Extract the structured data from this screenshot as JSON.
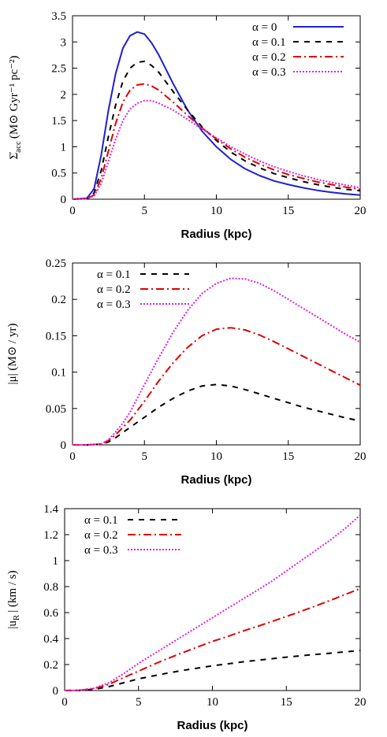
{
  "chart_data": [
    {
      "type": "line",
      "xlabel": "Radius (kpc)",
      "ylabel_main": "Σ̇",
      "ylabel_sub": "acc",
      "ylabel_units": "(M⊙ Gyr⁻¹ pc⁻²)",
      "xlim": [
        0,
        20
      ],
      "ylim": [
        0,
        3.5
      ],
      "xticks": [
        "0",
        "5",
        "10",
        "15",
        "20"
      ],
      "yticks": [
        "0",
        "0.5",
        "1",
        "1.5",
        "2",
        "2.5",
        "3",
        "3.5"
      ],
      "legend_position": "top-right",
      "series": [
        {
          "name": "α = 0",
          "color": "#1f1fd0",
          "dash": "solid",
          "x": [
            0,
            1,
            1.5,
            2,
            2.5,
            3,
            3.5,
            4,
            4.5,
            5,
            5.5,
            6,
            7,
            8,
            9,
            10,
            11,
            12,
            13,
            14,
            15,
            16,
            17,
            18,
            19,
            20
          ],
          "y": [
            0,
            0.02,
            0.2,
            0.85,
            1.7,
            2.4,
            2.88,
            3.12,
            3.19,
            3.15,
            2.98,
            2.75,
            2.2,
            1.7,
            1.3,
            1.0,
            0.76,
            0.58,
            0.45,
            0.35,
            0.28,
            0.22,
            0.17,
            0.13,
            0.1,
            0.08
          ]
        },
        {
          "name": "α = 0.1",
          "color": "#000000",
          "dash": "dashed",
          "x": [
            0,
            1,
            1.5,
            2,
            2.5,
            3,
            3.5,
            4,
            4.5,
            5,
            5.5,
            6,
            7,
            8,
            9,
            10,
            11,
            12,
            13,
            14,
            15,
            16,
            17,
            18,
            19,
            20
          ],
          "y": [
            0,
            0.01,
            0.12,
            0.55,
            1.2,
            1.8,
            2.25,
            2.5,
            2.61,
            2.63,
            2.55,
            2.42,
            2.05,
            1.7,
            1.38,
            1.12,
            0.9,
            0.73,
            0.6,
            0.49,
            0.41,
            0.34,
            0.28,
            0.23,
            0.19,
            0.16
          ]
        },
        {
          "name": "α = 0.2",
          "color": "#e00000",
          "dash": "dashdot",
          "x": [
            0,
            1,
            1.5,
            2,
            2.5,
            3,
            3.5,
            4,
            4.5,
            5,
            5.5,
            6,
            7,
            8,
            9,
            10,
            11,
            12,
            13,
            14,
            15,
            16,
            17,
            18,
            19,
            20
          ],
          "y": [
            0,
            0.01,
            0.08,
            0.4,
            0.92,
            1.45,
            1.85,
            2.08,
            2.18,
            2.2,
            2.16,
            2.08,
            1.85,
            1.6,
            1.36,
            1.15,
            0.96,
            0.8,
            0.67,
            0.56,
            0.47,
            0.4,
            0.33,
            0.28,
            0.23,
            0.19
          ]
        },
        {
          "name": "α = 0.3",
          "color": "#e020e0",
          "dash": "dotted",
          "x": [
            0,
            1,
            1.5,
            2,
            2.5,
            3,
            3.5,
            4,
            4.5,
            5,
            5.5,
            6,
            7,
            8,
            9,
            10,
            11,
            12,
            13,
            14,
            15,
            16,
            17,
            18,
            19,
            20
          ],
          "y": [
            0,
            0.01,
            0.06,
            0.3,
            0.72,
            1.15,
            1.5,
            1.72,
            1.83,
            1.88,
            1.88,
            1.83,
            1.7,
            1.52,
            1.34,
            1.17,
            1.0,
            0.86,
            0.73,
            0.62,
            0.53,
            0.45,
            0.38,
            0.32,
            0.27,
            0.22
          ]
        }
      ]
    },
    {
      "type": "line",
      "xlabel": "Radius (kpc)",
      "ylabel_main": "|μ| (M⊙ / yr)",
      "xlim": [
        0,
        20
      ],
      "ylim": [
        0,
        0.25
      ],
      "xticks": [
        "0",
        "5",
        "10",
        "15",
        "20"
      ],
      "yticks": [
        "0",
        "0.05",
        "0.1",
        "0.15",
        "0.2",
        "0.25"
      ],
      "legend_position": "top-left",
      "series": [
        {
          "name": "α = 0.1",
          "color": "#000000",
          "dash": "dashed",
          "x": [
            0,
            1,
            2,
            2.5,
            3,
            3.5,
            4,
            5,
            6,
            7,
            8,
            9,
            10,
            11,
            12,
            13,
            14,
            15,
            16,
            17,
            18,
            19,
            20
          ],
          "y": [
            0,
            0,
            0.001,
            0.004,
            0.01,
            0.017,
            0.024,
            0.038,
            0.052,
            0.064,
            0.074,
            0.081,
            0.083,
            0.081,
            0.076,
            0.07,
            0.064,
            0.058,
            0.052,
            0.047,
            0.042,
            0.037,
            0.033
          ]
        },
        {
          "name": "α = 0.2",
          "color": "#e00000",
          "dash": "dashdot",
          "x": [
            0,
            1,
            2,
            2.5,
            3,
            3.5,
            4,
            5,
            6,
            7,
            8,
            9,
            10,
            11,
            12,
            13,
            14,
            15,
            16,
            17,
            18,
            19,
            20
          ],
          "y": [
            0,
            0,
            0.001,
            0.006,
            0.014,
            0.024,
            0.034,
            0.06,
            0.088,
            0.113,
            0.134,
            0.15,
            0.159,
            0.161,
            0.158,
            0.151,
            0.142,
            0.132,
            0.122,
            0.112,
            0.102,
            0.092,
            0.082
          ]
        },
        {
          "name": "α = 0.3",
          "color": "#e020e0",
          "dash": "dotted",
          "x": [
            0,
            1,
            2,
            2.5,
            3,
            3.5,
            4,
            5,
            6,
            7,
            8,
            9,
            10,
            11,
            12,
            13,
            14,
            15,
            16,
            17,
            18,
            19,
            20
          ],
          "y": [
            0,
            0,
            0.001,
            0.007,
            0.018,
            0.03,
            0.045,
            0.083,
            0.12,
            0.155,
            0.185,
            0.208,
            0.222,
            0.229,
            0.228,
            0.222,
            0.212,
            0.2,
            0.188,
            0.176,
            0.164,
            0.152,
            0.141
          ]
        }
      ]
    },
    {
      "type": "line",
      "xlabel": "Radius (kpc)",
      "ylabel_main": "|u",
      "ylabel_sub": "R",
      "ylabel_units": "| (km / s)",
      "xlim": [
        0,
        20
      ],
      "ylim": [
        0,
        1.4
      ],
      "xticks": [
        "0",
        "5",
        "10",
        "15",
        "20"
      ],
      "yticks": [
        "0",
        "0.2",
        "0.4",
        "0.6",
        "0.8",
        "1",
        "1.2",
        "1.4"
      ],
      "legend_position": "top-left",
      "series": [
        {
          "name": "α = 0.1",
          "color": "#000000",
          "dash": "dashed",
          "x": [
            0,
            1,
            2,
            3,
            4,
            5,
            6,
            7,
            8,
            9,
            10,
            11,
            12,
            13,
            14,
            15,
            16,
            17,
            18,
            19,
            20
          ],
          "y": [
            0,
            0.001,
            0.01,
            0.03,
            0.06,
            0.09,
            0.113,
            0.135,
            0.155,
            0.173,
            0.19,
            0.205,
            0.22,
            0.233,
            0.245,
            0.257,
            0.268,
            0.278,
            0.288,
            0.298,
            0.308
          ]
        },
        {
          "name": "α = 0.2",
          "color": "#e00000",
          "dash": "dashdot",
          "x": [
            0,
            1,
            2,
            3,
            4,
            5,
            6,
            7,
            8,
            9,
            10,
            11,
            12,
            13,
            14,
            15,
            16,
            17,
            18,
            19,
            20
          ],
          "y": [
            0,
            0.002,
            0.015,
            0.048,
            0.1,
            0.15,
            0.2,
            0.248,
            0.292,
            0.336,
            0.378,
            0.415,
            0.455,
            0.492,
            0.53,
            0.57,
            0.61,
            0.652,
            0.695,
            0.74,
            0.785
          ]
        },
        {
          "name": "α = 0.3",
          "color": "#e020e0",
          "dash": "dotted",
          "x": [
            0,
            1,
            2,
            3,
            4,
            5,
            6,
            7,
            8,
            9,
            10,
            11,
            12,
            13,
            14,
            15,
            16,
            17,
            18,
            19,
            20
          ],
          "y": [
            0,
            0.002,
            0.018,
            0.06,
            0.13,
            0.21,
            0.28,
            0.35,
            0.42,
            0.49,
            0.56,
            0.63,
            0.7,
            0.77,
            0.84,
            0.92,
            1.0,
            1.08,
            1.16,
            1.25,
            1.35
          ]
        }
      ]
    }
  ]
}
